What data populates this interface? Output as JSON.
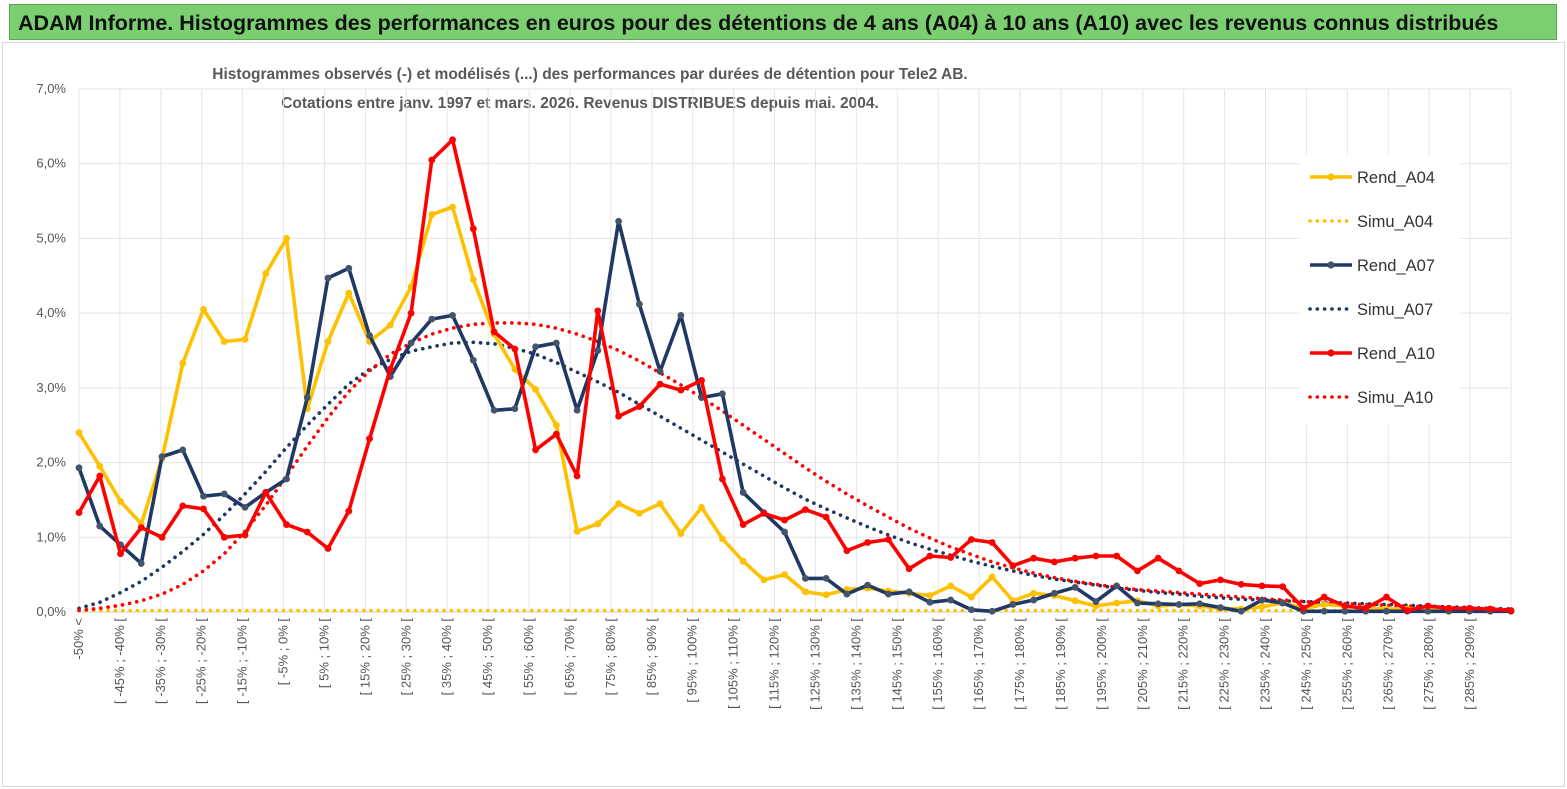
{
  "header": {
    "title": "ADAM Informe. Histogrammes des performances en euros pour des détentions de 4 ans (A04) à 10 ans (A10) avec les revenus connus distribués"
  },
  "chart_data": {
    "type": "line",
    "title_line1": "Histogrammes observés (-) et modélisés (...) des performances par durées de détention pour Tele2 AB.",
    "title_line2": "Cotations entre janv. 1997 et mars. 2026. Revenus DISTRIBUES depuis mai. 2004.",
    "xlabel": "",
    "ylabel": "",
    "ylim": [
      0,
      7
    ],
    "y_ticks": [
      0,
      1,
      2,
      3,
      4,
      5,
      6,
      7
    ],
    "y_tick_labels": [
      "0,0%",
      "1,0%",
      "2,0%",
      "3,0%",
      "4,0%",
      "5,0%",
      "6,0%",
      "7,0%"
    ],
    "x_labels": [
      "-50% <",
      "[ -45% ; -40% [",
      "[ -35% ; -30% [",
      "[ -25% ; -20% [",
      "[ -15% ; -10% [",
      "[ -5% ; 0% [",
      "[ 5% ; 10% [",
      "[ 15% ; 20% [",
      "[ 25% ; 30% [",
      "[ 35% ; 40% [",
      "[ 45% ; 50% [",
      "[ 55% ; 60% [",
      "[ 65% ; 70% [",
      "[ 75% ; 80% [",
      "[ 85% ; 90% [",
      "[ 95% ; 100% [",
      "[ 105% ; 110% [",
      "[ 115% ; 120% [",
      "[ 125% ; 130% [",
      "[ 135% ; 140% [",
      "[ 145% ; 150% [",
      "[ 155% ; 160% [",
      "[ 165% ; 170% [",
      "[ 175% ; 180% [",
      "[ 185% ; 190% [",
      "[ 195% ; 200% [",
      "[ 205% ; 210% [",
      "[ 215% ; 220% [",
      "[ 225% ; 230% [",
      "[ 235% ; 240% [",
      "[ 245% ; 250% [",
      "[ 255% ; 260% [",
      "[ 265% ; 270% [",
      "[ 275% ; 280% [",
      "[ 285% ; 290% ["
    ],
    "n_points": 70,
    "legend_position": "right",
    "grid": true,
    "series": [
      {
        "name": "Rend_A04",
        "style": "solid",
        "color": "#ffc000",
        "values": [
          2.4,
          1.95,
          1.48,
          1.18,
          2.05,
          3.33,
          4.05,
          3.62,
          3.65,
          4.53,
          5.0,
          2.72,
          3.62,
          4.27,
          3.62,
          3.84,
          4.35,
          5.32,
          5.42,
          4.45,
          3.72,
          3.25,
          2.98,
          2.5,
          1.08,
          1.18,
          1.45,
          1.32,
          1.45,
          1.05,
          1.4,
          0.98,
          0.68,
          0.43,
          0.5,
          0.27,
          0.23,
          0.3,
          0.32,
          0.28,
          0.25,
          0.22,
          0.35,
          0.2,
          0.47,
          0.15,
          0.25,
          0.22,
          0.15,
          0.08,
          0.12,
          0.15,
          0.08,
          0.1,
          0.08,
          0.05,
          0.04,
          0.07,
          0.12,
          0.05,
          0.1,
          0.08,
          0.05,
          0.04,
          0.04,
          0.03,
          0.03,
          0.02,
          0.02,
          0.01
        ]
      },
      {
        "name": "Simu_A04",
        "style": "dotted",
        "color": "#ffc000",
        "values": [
          0.02,
          0.02,
          0.02,
          0.02,
          0.02,
          0.02,
          0.02,
          0.02,
          0.02,
          0.02,
          0.02,
          0.02,
          0.02,
          0.02,
          0.02,
          0.02,
          0.02,
          0.02,
          0.02,
          0.02,
          0.02,
          0.02,
          0.02,
          0.02,
          0.02,
          0.02,
          0.02,
          0.02,
          0.02,
          0.02,
          0.02,
          0.02,
          0.02,
          0.02,
          0.02,
          0.02,
          0.02,
          0.02,
          0.02,
          0.02,
          0.02,
          0.02,
          0.02,
          0.02,
          0.02,
          0.02,
          0.02,
          0.02,
          0.02,
          0.02,
          0.02,
          0.02,
          0.02,
          0.02,
          0.02,
          0.02,
          0.02,
          0.02,
          0.02,
          0.02,
          0.02,
          0.02,
          0.02,
          0.02,
          0.02,
          0.02,
          0.02,
          0.02,
          0.02,
          0.02
        ]
      },
      {
        "name": "Rend_A07",
        "style": "solid",
        "color": "#1f3864",
        "values": [
          1.93,
          1.15,
          0.9,
          0.65,
          2.08,
          2.17,
          1.55,
          1.58,
          1.4,
          1.6,
          1.78,
          2.87,
          4.47,
          4.6,
          3.7,
          3.15,
          3.6,
          3.92,
          3.97,
          3.37,
          2.7,
          2.72,
          3.55,
          3.6,
          2.7,
          3.5,
          5.23,
          4.12,
          3.22,
          3.97,
          2.87,
          2.92,
          1.6,
          1.33,
          1.07,
          0.45,
          0.45,
          0.24,
          0.36,
          0.24,
          0.27,
          0.13,
          0.16,
          0.03,
          0.01,
          0.1,
          0.16,
          0.25,
          0.33,
          0.14,
          0.35,
          0.12,
          0.11,
          0.1,
          0.11,
          0.06,
          0.01,
          0.16,
          0.12,
          0.01,
          0.01,
          0.01,
          0.01,
          0.01,
          0.01,
          0.01,
          0.01,
          0.01,
          0.01,
          0.01
        ]
      },
      {
        "name": "Simu_A07",
        "style": "dotted",
        "color": "#1f3864",
        "values": [
          0.05,
          0.13,
          0.26,
          0.41,
          0.6,
          0.81,
          1.04,
          1.3,
          1.58,
          1.88,
          2.2,
          2.5,
          2.78,
          3.05,
          3.25,
          3.38,
          3.49,
          3.55,
          3.6,
          3.61,
          3.59,
          3.53,
          3.45,
          3.34,
          3.21,
          3.08,
          2.94,
          2.78,
          2.62,
          2.46,
          2.3,
          2.14,
          1.98,
          1.82,
          1.66,
          1.51,
          1.38,
          1.26,
          1.14,
          1.03,
          0.93,
          0.84,
          0.76,
          0.68,
          0.61,
          0.55,
          0.49,
          0.44,
          0.4,
          0.36,
          0.32,
          0.29,
          0.26,
          0.24,
          0.21,
          0.19,
          0.17,
          0.16,
          0.15,
          0.14,
          0.13,
          0.12,
          0.11,
          0.1,
          0.09,
          0.08,
          0.07,
          0.06,
          0.05,
          0.04
        ]
      },
      {
        "name": "Rend_A10",
        "style": "solid",
        "color": "#ff0000",
        "values": [
          1.33,
          1.82,
          0.78,
          1.13,
          1.0,
          1.42,
          1.38,
          1.0,
          1.03,
          1.6,
          1.17,
          1.07,
          0.85,
          1.35,
          2.32,
          3.25,
          4.0,
          6.05,
          6.32,
          5.13,
          3.75,
          3.52,
          2.17,
          2.38,
          1.82,
          4.03,
          2.62,
          2.75,
          3.05,
          2.97,
          3.1,
          1.78,
          1.17,
          1.32,
          1.23,
          1.37,
          1.27,
          0.82,
          0.93,
          0.97,
          0.58,
          0.75,
          0.73,
          0.97,
          0.93,
          0.62,
          0.72,
          0.67,
          0.72,
          0.75,
          0.75,
          0.55,
          0.72,
          0.55,
          0.38,
          0.43,
          0.37,
          0.35,
          0.34,
          0.05,
          0.2,
          0.08,
          0.05,
          0.2,
          0.02,
          0.08,
          0.05,
          0.05,
          0.04,
          0.02
        ]
      },
      {
        "name": "Simu_A10",
        "style": "dotted",
        "color": "#ff0000",
        "values": [
          0.02,
          0.05,
          0.09,
          0.15,
          0.24,
          0.37,
          0.55,
          0.78,
          1.08,
          1.43,
          1.82,
          2.22,
          2.6,
          2.95,
          3.23,
          3.45,
          3.6,
          3.72,
          3.8,
          3.85,
          3.87,
          3.87,
          3.85,
          3.8,
          3.72,
          3.62,
          3.5,
          3.36,
          3.2,
          3.04,
          2.87,
          2.69,
          2.5,
          2.31,
          2.12,
          1.93,
          1.75,
          1.58,
          1.42,
          1.27,
          1.12,
          0.99,
          0.87,
          0.77,
          0.67,
          0.59,
          0.52,
          0.46,
          0.41,
          0.37,
          0.33,
          0.3,
          0.28,
          0.26,
          0.24,
          0.22,
          0.2,
          0.18,
          0.16,
          0.14,
          0.12,
          0.11,
          0.1,
          0.09,
          0.08,
          0.07,
          0.06,
          0.05,
          0.04,
          0.03
        ]
      }
    ]
  }
}
